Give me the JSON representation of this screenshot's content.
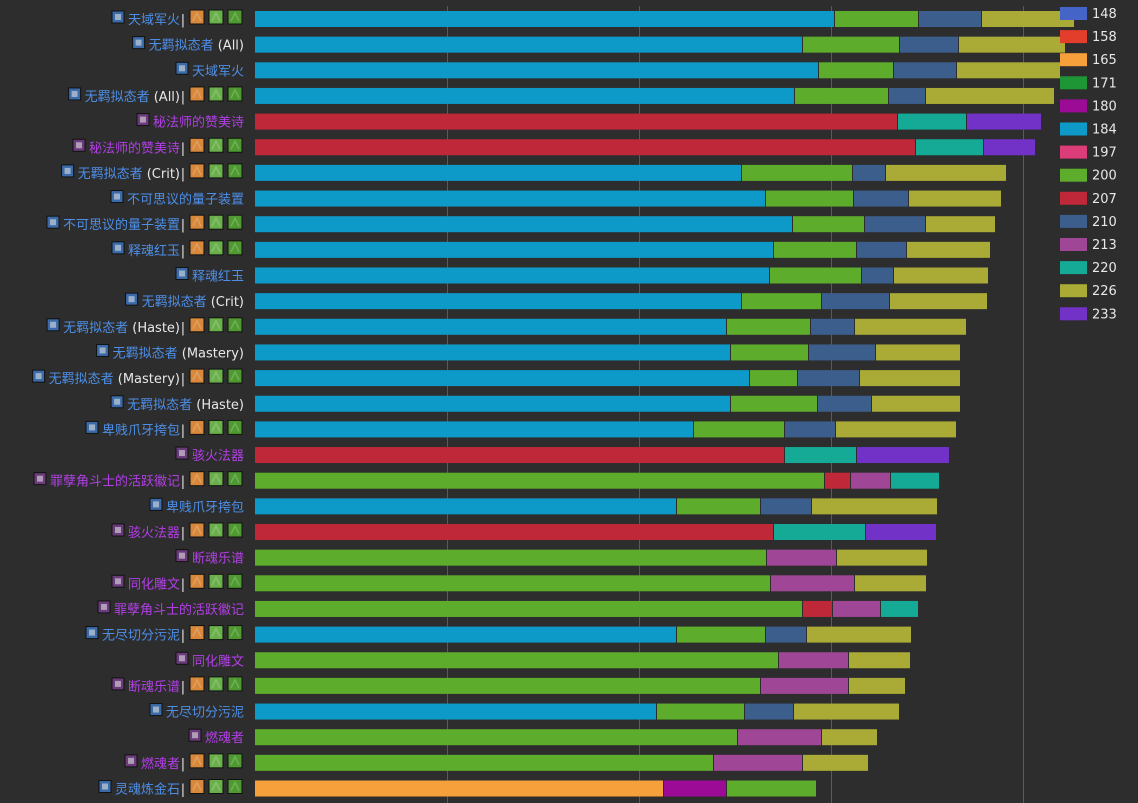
{
  "chart_data": {
    "type": "bar",
    "orientation": "horizontal",
    "stacked": true,
    "grid": true,
    "legend": "right",
    "xlim": [
      0,
      820
    ],
    "legend_entries": [
      {
        "label": "148",
        "color": "#4464c8"
      },
      {
        "label": "158",
        "color": "#e33d2b"
      },
      {
        "label": "165",
        "color": "#f5a03b"
      },
      {
        "label": "171",
        "color": "#1e9636"
      },
      {
        "label": "180",
        "color": "#9b0b96"
      },
      {
        "label": "184",
        "color": "#0e9ac8"
      },
      {
        "label": "197",
        "color": "#dc3c78"
      },
      {
        "label": "200",
        "color": "#5eac2c"
      },
      {
        "label": "207",
        "color": "#be2838"
      },
      {
        "label": "210",
        "color": "#3c5e8c"
      },
      {
        "label": "213",
        "color": "#a04696"
      },
      {
        "label": "220",
        "color": "#14aa96"
      },
      {
        "label": "226",
        "color": "#aaaa36"
      },
      {
        "label": "233",
        "color": "#7232c8"
      }
    ],
    "rows": [
      {
        "name": "天域军火",
        "extra": "",
        "epic": false,
        "icons": true,
        "segments": [
          {
            "level": "184",
            "value": 580
          },
          {
            "level": "200",
            "value": 84
          },
          {
            "level": "210",
            "value": 63
          },
          {
            "level": "226",
            "value": 93
          }
        ]
      },
      {
        "name": "无羁拟态者",
        "extra": "(All)",
        "epic": false,
        "icons": false,
        "segments": [
          {
            "level": "184",
            "value": 548
          },
          {
            "level": "200",
            "value": 97
          },
          {
            "level": "210",
            "value": 59
          },
          {
            "level": "226",
            "value": 107
          }
        ]
      },
      {
        "name": "天域军火",
        "extra": "",
        "epic": false,
        "icons": false,
        "segments": [
          {
            "level": "184",
            "value": 564
          },
          {
            "level": "200",
            "value": 75
          },
          {
            "level": "210",
            "value": 63
          },
          {
            "level": "226",
            "value": 104
          }
        ]
      },
      {
        "name": "无羁拟态者",
        "extra": "(All)",
        "epic": false,
        "icons": true,
        "segments": [
          {
            "level": "184",
            "value": 540
          },
          {
            "level": "200",
            "value": 94
          },
          {
            "level": "210",
            "value": 37
          },
          {
            "level": "226",
            "value": 129
          }
        ]
      },
      {
        "name": "秘法师的赞美诗",
        "extra": "",
        "epic": true,
        "icons": false,
        "segments": [
          {
            "level": "207",
            "value": 643
          },
          {
            "level": "220",
            "value": 69
          },
          {
            "level": "233",
            "value": 75
          }
        ]
      },
      {
        "name": "秘法师的赞美诗",
        "extra": "",
        "epic": true,
        "icons": true,
        "segments": [
          {
            "level": "207",
            "value": 661
          },
          {
            "level": "220",
            "value": 68
          },
          {
            "level": "233",
            "value": 52
          }
        ]
      },
      {
        "name": "无羁拟态者",
        "extra": "(Crit)",
        "epic": false,
        "icons": true,
        "segments": [
          {
            "level": "184",
            "value": 487
          },
          {
            "level": "200",
            "value": 111
          },
          {
            "level": "210",
            "value": 33
          },
          {
            "level": "226",
            "value": 121
          }
        ]
      },
      {
        "name": "不可思议的量子装置",
        "extra": "",
        "epic": false,
        "icons": false,
        "segments": [
          {
            "level": "184",
            "value": 511
          },
          {
            "level": "200",
            "value": 88
          },
          {
            "level": "210",
            "value": 55
          },
          {
            "level": "226",
            "value": 93
          }
        ]
      },
      {
        "name": "不可思议的量子装置",
        "extra": "",
        "epic": false,
        "icons": true,
        "segments": [
          {
            "level": "184",
            "value": 538
          },
          {
            "level": "200",
            "value": 72
          },
          {
            "level": "210",
            "value": 61
          },
          {
            "level": "226",
            "value": 70
          }
        ]
      },
      {
        "name": "释魂红玉",
        "extra": "",
        "epic": false,
        "icons": true,
        "segments": [
          {
            "level": "184",
            "value": 519
          },
          {
            "level": "200",
            "value": 83
          },
          {
            "level": "210",
            "value": 50
          },
          {
            "level": "226",
            "value": 84
          }
        ]
      },
      {
        "name": "释魂红玉",
        "extra": "",
        "epic": false,
        "icons": false,
        "segments": [
          {
            "level": "184",
            "value": 515
          },
          {
            "level": "200",
            "value": 92
          },
          {
            "level": "210",
            "value": 32
          },
          {
            "level": "226",
            "value": 95
          }
        ]
      },
      {
        "name": "无羁拟态者",
        "extra": "(Crit)",
        "epic": false,
        "icons": false,
        "segments": [
          {
            "level": "184",
            "value": 487
          },
          {
            "level": "200",
            "value": 80
          },
          {
            "level": "210",
            "value": 68
          },
          {
            "level": "226",
            "value": 98
          }
        ]
      },
      {
        "name": "无羁拟态者",
        "extra": "(Haste)",
        "epic": false,
        "icons": true,
        "segments": [
          {
            "level": "184",
            "value": 472
          },
          {
            "level": "200",
            "value": 84
          },
          {
            "level": "210",
            "value": 44
          },
          {
            "level": "226",
            "value": 112
          }
        ]
      },
      {
        "name": "无羁拟态者",
        "extra": "(Mastery)",
        "epic": false,
        "icons": false,
        "segments": [
          {
            "level": "184",
            "value": 476
          },
          {
            "level": "200",
            "value": 78
          },
          {
            "level": "210",
            "value": 67
          },
          {
            "level": "226",
            "value": 85
          }
        ]
      },
      {
        "name": "无羁拟态者",
        "extra": "(Mastery)",
        "epic": false,
        "icons": true,
        "segments": [
          {
            "level": "184",
            "value": 495
          },
          {
            "level": "200",
            "value": 48
          },
          {
            "level": "210",
            "value": 62
          },
          {
            "level": "226",
            "value": 101
          }
        ]
      },
      {
        "name": "无羁拟态者",
        "extra": "(Haste)",
        "epic": false,
        "icons": false,
        "segments": [
          {
            "level": "184",
            "value": 476
          },
          {
            "level": "200",
            "value": 87
          },
          {
            "level": "210",
            "value": 54
          },
          {
            "level": "226",
            "value": 89
          }
        ]
      },
      {
        "name": "卑贱爪牙挎包",
        "extra": "",
        "epic": false,
        "icons": true,
        "segments": [
          {
            "level": "184",
            "value": 439
          },
          {
            "level": "200",
            "value": 91
          },
          {
            "level": "210",
            "value": 51
          },
          {
            "level": "226",
            "value": 121
          }
        ]
      },
      {
        "name": "骇火法器",
        "extra": "",
        "epic": true,
        "icons": false,
        "segments": [
          {
            "level": "207",
            "value": 530
          },
          {
            "level": "220",
            "value": 72
          },
          {
            "level": "233",
            "value": 93
          }
        ]
      },
      {
        "name": "罪孽角斗士的活跃徽记",
        "extra": "",
        "epic": true,
        "icons": true,
        "segments": [
          {
            "level": "200",
            "value": 570
          },
          {
            "level": "207",
            "value": 26
          },
          {
            "level": "213",
            "value": 40
          },
          {
            "level": "220",
            "value": 49
          }
        ]
      },
      {
        "name": "卑贱爪牙挎包",
        "extra": "",
        "epic": false,
        "icons": false,
        "segments": [
          {
            "level": "184",
            "value": 422
          },
          {
            "level": "200",
            "value": 84
          },
          {
            "level": "210",
            "value": 51
          },
          {
            "level": "226",
            "value": 126
          }
        ]
      },
      {
        "name": "骇火法器",
        "extra": "",
        "epic": true,
        "icons": true,
        "segments": [
          {
            "level": "207",
            "value": 519
          },
          {
            "level": "220",
            "value": 92
          },
          {
            "level": "233",
            "value": 71
          }
        ]
      },
      {
        "name": "断魂乐谱",
        "extra": "",
        "epic": true,
        "icons": false,
        "segments": [
          {
            "level": "200",
            "value": 512
          },
          {
            "level": "213",
            "value": 70
          },
          {
            "level": "226",
            "value": 91
          }
        ]
      },
      {
        "name": "同化雕文",
        "extra": "",
        "epic": true,
        "icons": true,
        "segments": [
          {
            "level": "200",
            "value": 516
          },
          {
            "level": "213",
            "value": 84
          },
          {
            "level": "226",
            "value": 72
          }
        ]
      },
      {
        "name": "罪孽角斗士的活跃徽记",
        "extra": "",
        "epic": true,
        "icons": false,
        "segments": [
          {
            "level": "200",
            "value": 548
          },
          {
            "level": "207",
            "value": 30
          },
          {
            "level": "213",
            "value": 48
          },
          {
            "level": "220",
            "value": 38
          }
        ]
      },
      {
        "name": "无尽切分污泥",
        "extra": "",
        "epic": false,
        "icons": true,
        "segments": [
          {
            "level": "184",
            "value": 422
          },
          {
            "level": "200",
            "value": 89
          },
          {
            "level": "210",
            "value": 41
          },
          {
            "level": "226",
            "value": 105
          }
        ]
      },
      {
        "name": "同化雕文",
        "extra": "",
        "epic": true,
        "icons": false,
        "segments": [
          {
            "level": "200",
            "value": 524
          },
          {
            "level": "213",
            "value": 70
          },
          {
            "level": "226",
            "value": 62
          }
        ]
      },
      {
        "name": "断魂乐谱",
        "extra": "",
        "epic": true,
        "icons": true,
        "segments": [
          {
            "level": "200",
            "value": 506
          },
          {
            "level": "213",
            "value": 88
          },
          {
            "level": "226",
            "value": 57
          }
        ]
      },
      {
        "name": "无尽切分污泥",
        "extra": "",
        "epic": false,
        "icons": false,
        "segments": [
          {
            "level": "184",
            "value": 402
          },
          {
            "level": "200",
            "value": 88
          },
          {
            "level": "210",
            "value": 49
          },
          {
            "level": "226",
            "value": 106
          }
        ]
      },
      {
        "name": "燃魂者",
        "extra": "",
        "epic": true,
        "icons": false,
        "segments": [
          {
            "level": "200",
            "value": 483
          },
          {
            "level": "213",
            "value": 84
          },
          {
            "level": "226",
            "value": 56
          }
        ]
      },
      {
        "name": "燃魂者",
        "extra": "",
        "epic": true,
        "icons": true,
        "segments": [
          {
            "level": "200",
            "value": 459
          },
          {
            "level": "213",
            "value": 89
          },
          {
            "level": "226",
            "value": 66
          }
        ]
      },
      {
        "name": "灵魂炼金石",
        "extra": "",
        "epic": false,
        "icons": true,
        "segments": [
          {
            "level": "165",
            "value": 409
          },
          {
            "level": "180",
            "value": 63
          },
          {
            "level": "200",
            "value": 90
          }
        ]
      }
    ]
  }
}
